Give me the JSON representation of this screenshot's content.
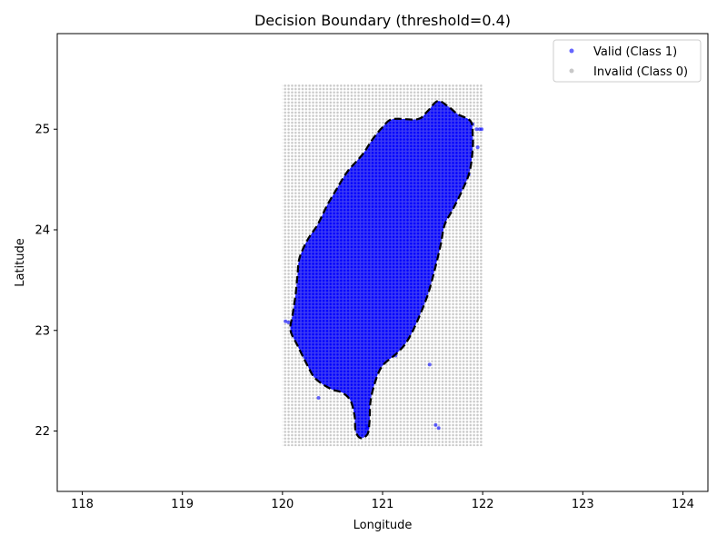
{
  "chart_data": {
    "type": "scatter",
    "title": "Decision Boundary (threshold=0.4)",
    "xlabel": "Longitude",
    "ylabel": "Latitude",
    "xlim": [
      117.75,
      124.25
    ],
    "ylim": [
      21.4,
      25.95
    ],
    "x_ticks": [
      118,
      119,
      120,
      121,
      122,
      123,
      124
    ],
    "y_ticks": [
      22,
      23,
      24,
      25
    ],
    "grid": false,
    "legend_position": "top-right",
    "threshold": 0.4,
    "grid_region": {
      "x": [
        120.0,
        122.0
      ],
      "y": [
        21.85,
        25.45
      ]
    },
    "series": [
      {
        "name": "Valid (Class 1)",
        "color": "#0000ff"
      },
      {
        "name": "Invalid (Class 0)",
        "color": "#c8c8c8"
      }
    ],
    "boundary": {
      "color": "#000000",
      "style": "dashed",
      "points": [
        [
          121.55,
          25.28
        ],
        [
          121.45,
          25.18
        ],
        [
          121.35,
          25.1
        ],
        [
          121.1,
          25.1
        ],
        [
          121.0,
          25.02
        ],
        [
          120.9,
          24.9
        ],
        [
          120.8,
          24.75
        ],
        [
          120.65,
          24.58
        ],
        [
          120.55,
          24.42
        ],
        [
          120.45,
          24.25
        ],
        [
          120.35,
          24.05
        ],
        [
          120.25,
          23.9
        ],
        [
          120.17,
          23.72
        ],
        [
          120.15,
          23.55
        ],
        [
          120.13,
          23.35
        ],
        [
          120.1,
          23.15
        ],
        [
          120.08,
          23.0
        ],
        [
          120.15,
          22.85
        ],
        [
          120.25,
          22.65
        ],
        [
          120.33,
          22.52
        ],
        [
          120.48,
          22.42
        ],
        [
          120.6,
          22.38
        ],
        [
          120.68,
          22.3
        ],
        [
          120.72,
          22.15
        ],
        [
          120.73,
          22.0
        ],
        [
          120.78,
          21.93
        ],
        [
          120.85,
          21.97
        ],
        [
          120.87,
          22.1
        ],
        [
          120.88,
          22.3
        ],
        [
          120.93,
          22.5
        ],
        [
          121.0,
          22.65
        ],
        [
          121.15,
          22.78
        ],
        [
          121.25,
          22.9
        ],
        [
          121.35,
          23.1
        ],
        [
          121.45,
          23.35
        ],
        [
          121.52,
          23.6
        ],
        [
          121.58,
          23.85
        ],
        [
          121.62,
          24.05
        ],
        [
          121.7,
          24.2
        ],
        [
          121.8,
          24.4
        ],
        [
          121.87,
          24.58
        ],
        [
          121.9,
          24.8
        ],
        [
          121.9,
          24.95
        ],
        [
          121.88,
          25.08
        ],
        [
          121.75,
          25.15
        ],
        [
          121.65,
          25.23
        ],
        [
          121.55,
          25.28
        ]
      ]
    },
    "outlier_valid_points": [
      [
        120.03,
        23.09
      ],
      [
        120.06,
        23.08
      ],
      [
        120.09,
        23.06
      ],
      [
        120.36,
        22.33
      ],
      [
        121.47,
        22.66
      ],
      [
        121.13,
        22.75
      ],
      [
        121.53,
        22.06
      ],
      [
        121.56,
        22.03
      ],
      [
        120.85,
        22.03
      ],
      [
        120.85,
        22.05
      ],
      [
        121.94,
        25.0
      ],
      [
        121.97,
        25.0
      ],
      [
        121.99,
        25.0
      ],
      [
        121.95,
        24.82
      ],
      [
        121.86,
        24.55
      ],
      [
        121.9,
        25.05
      ]
    ]
  }
}
